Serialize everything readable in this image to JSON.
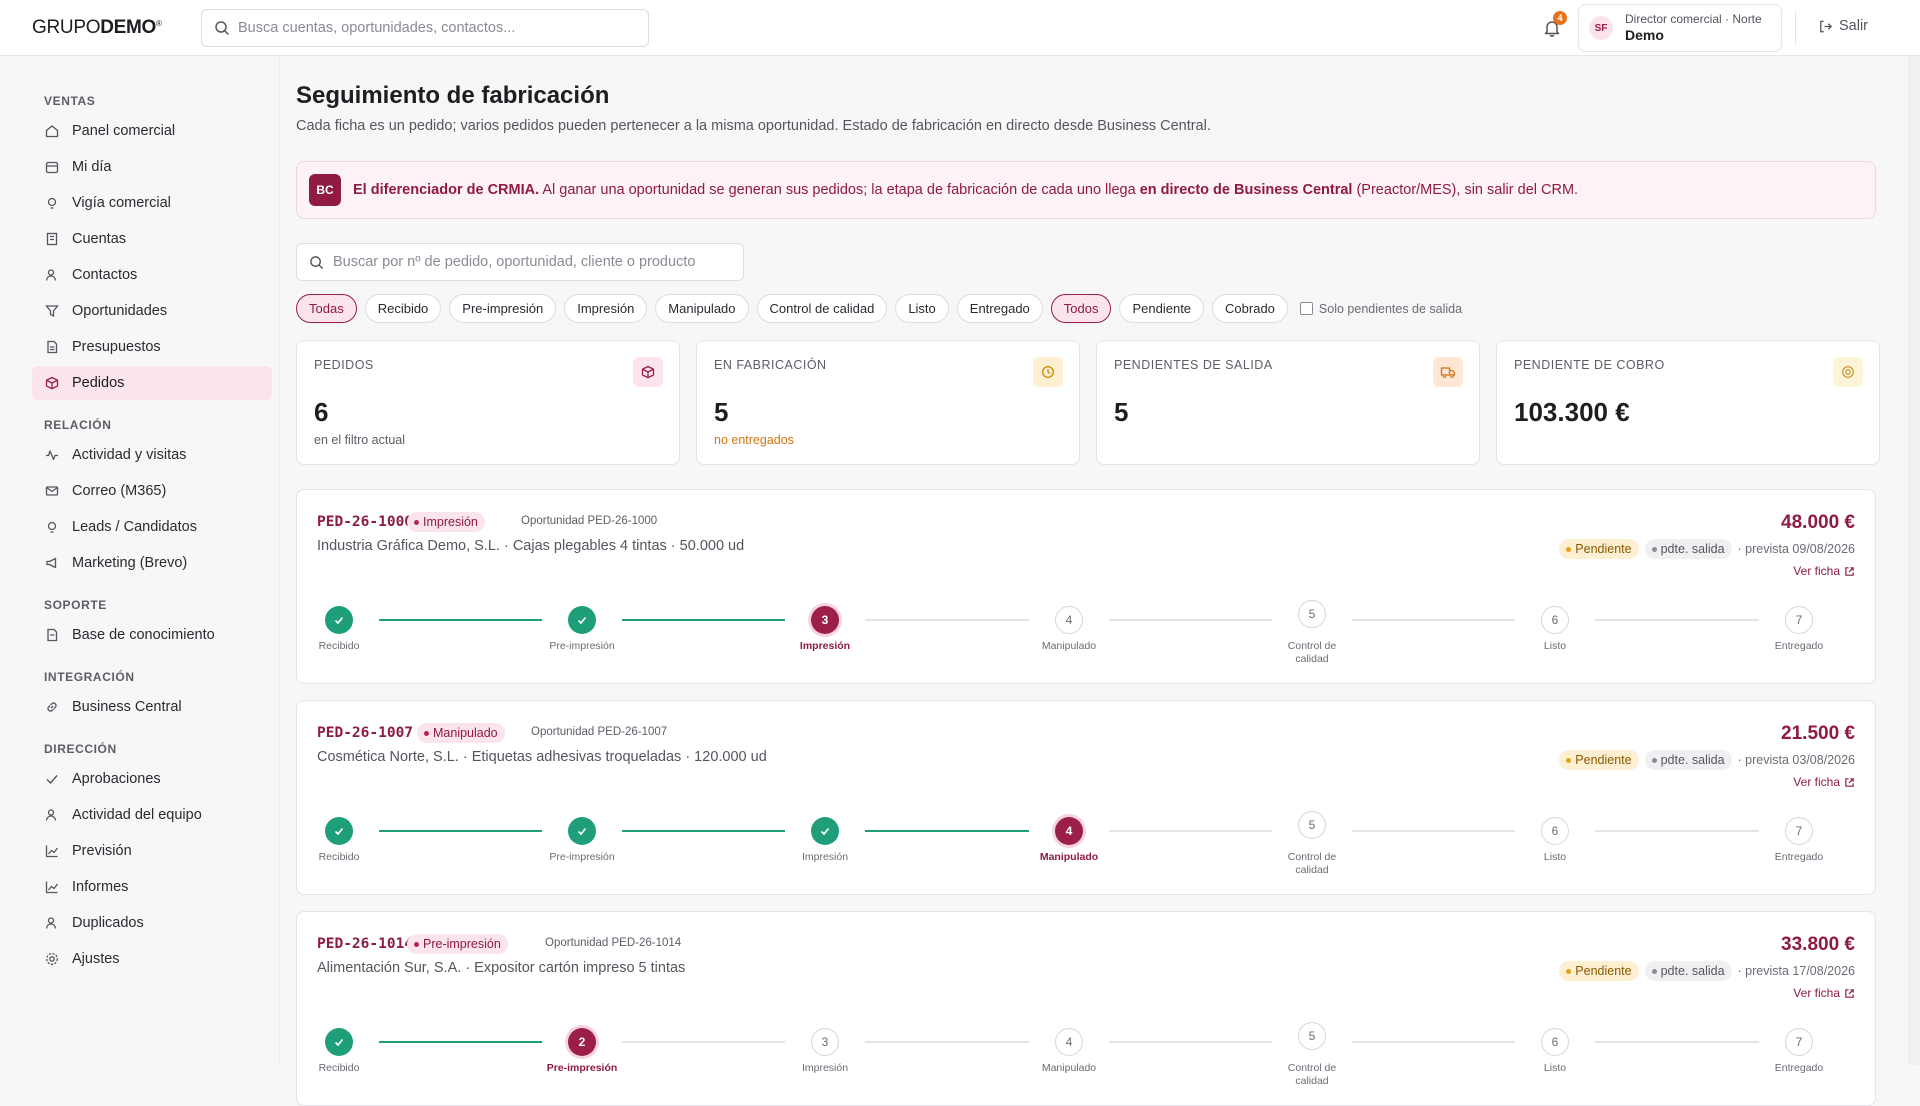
{
  "header": {
    "logo_light": "GRUPO",
    "logo_bold": "DEMO",
    "logo_mark": "®",
    "search_placeholder": "Busca cuentas, oportunidades, contactos...",
    "notifications_count": "4",
    "user_initials": "SF",
    "user_role": "Director comercial · Norte",
    "user_name": "Demo",
    "logout_label": "Salir"
  },
  "sidebar": {
    "sections": [
      {
        "title": "VENTAS",
        "items": [
          "Panel comercial",
          "Mi día",
          "Vigía comercial",
          "Cuentas",
          "Contactos",
          "Oportunidades",
          "Presupuestos",
          "Pedidos"
        ]
      },
      {
        "title": "RELACIÓN",
        "items": [
          "Actividad y visitas",
          "Correo (M365)",
          "Leads / Candidatos",
          "Marketing (Brevo)"
        ]
      },
      {
        "title": "SOPORTE",
        "items": [
          "Base de conocimiento"
        ]
      },
      {
        "title": "INTEGRACIÓN",
        "items": [
          "Business Central"
        ]
      },
      {
        "title": "DIRECCIÓN",
        "items": [
          "Aprobaciones",
          "Actividad del equipo",
          "Previsión",
          "Informes",
          "Duplicados",
          "Ajustes"
        ]
      }
    ],
    "active_item": "Pedidos"
  },
  "page": {
    "title": "Seguimiento de fabricación",
    "subtitle": "Cada ficha es un pedido; varios pedidos pueden pertenecer a la misma oportunidad. Estado de fabricación en directo desde Business Central.",
    "banner": {
      "badge": "BC",
      "lead": "El diferenciador de CRMIA.",
      "text1": " Al ganar una oportunidad se generan sus pedidos; la etapa de fabricación de cada uno llega ",
      "bold2": "en directo de Business Central",
      "text2": " (Preactor/MES), sin salir del CRM."
    },
    "search_placeholder": "Buscar por nº de pedido, oportunidad, cliente o producto",
    "stage_filters": [
      "Todas",
      "Recibido",
      "Pre-impresión",
      "Impresión",
      "Manipulado",
      "Control de calidad",
      "Listo",
      "Entregado"
    ],
    "payment_filters": [
      "Todos",
      "Pendiente",
      "Cobrado"
    ],
    "checkbox_label": "Solo pendientes de salida"
  },
  "kpis": [
    {
      "label": "PEDIDOS",
      "value": "6",
      "note": "en el filtro actual",
      "icon": "box-icon",
      "color": "#fbe4ec"
    },
    {
      "label": "EN FABRICACIÓN",
      "value": "5",
      "note": "no entregados",
      "icon": "clock-icon",
      "color": "#fdf0d2"
    },
    {
      "label": "PENDIENTES DE SALIDA",
      "value": "5",
      "note": "",
      "icon": "truck-icon",
      "color": "#fde6d4"
    },
    {
      "label": "PENDIENTE DE COBRO",
      "value": "103.300 €",
      "note": "",
      "icon": "coin-icon",
      "color": "#fdf3d9"
    }
  ],
  "step_labels": [
    "Recibido",
    "Pre-impresión",
    "Impresión",
    "Manipulado",
    "Control de calidad",
    "Listo",
    "Entregado"
  ],
  "orders": [
    {
      "id": "PED-26-1000",
      "stage": "Impresión",
      "opportunity": "Oportunidad PED-26-1000",
      "desc": "Industria Gráfica Demo, S.L. · Cajas plegables 4 tintas · 50.000 ud",
      "amount": "48.000 €",
      "payment": "Pendiente",
      "shipping": "pdte. salida",
      "eta": "· prevista 09/08/2026",
      "link": "Ver ficha",
      "current_step": 3
    },
    {
      "id": "PED-26-1007",
      "stage": "Manipulado",
      "opportunity": "Oportunidad PED-26-1007",
      "desc": "Cosmética Norte, S.L. · Etiquetas adhesivas troqueladas · 120.000 ud",
      "amount": "21.500 €",
      "payment": "Pendiente",
      "shipping": "pdte. salida",
      "eta": "· prevista 03/08/2026",
      "link": "Ver ficha",
      "current_step": 4
    },
    {
      "id": "PED-26-1014",
      "stage": "Pre-impresión",
      "opportunity": "Oportunidad PED-26-1014",
      "desc": "Alimentación Sur, S.A. · Expositor cartón impreso 5 tintas",
      "amount": "33.800 €",
      "payment": "Pendiente",
      "shipping": "pdte. salida",
      "eta": "· prevista 17/08/2026",
      "link": "Ver ficha",
      "current_step": 2
    }
  ],
  "colors": {
    "brand": "#9c1e4b",
    "done": "#1f9e7a",
    "pending_dot": "#e0a21a"
  }
}
